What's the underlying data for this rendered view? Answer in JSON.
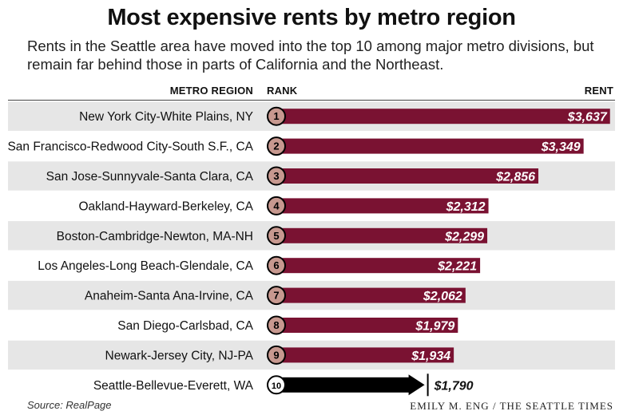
{
  "title": "Most expensive rents by metro region",
  "subtitle": "Rents in the Seattle area have moved into the top 10 among major metro divisions, but remain far behind those in parts of California and the Northeast.",
  "headers": {
    "metro": "METRO REGION",
    "rank": "RANK",
    "rent": "RENT"
  },
  "source": "Source: RealPage",
  "credit": "EMILY M. ENG / THE SEATTLE TIMES",
  "colors": {
    "bar": "#7a1232",
    "highlight_bar": "#000000",
    "rank_circle": "#c7988f",
    "row_stripe": "#e6e6e6"
  },
  "chart_data": {
    "type": "bar",
    "orientation": "horizontal",
    "categories": [
      "New York City-White Plains, NY",
      "San Francisco-Redwood City-South S.F., CA",
      "San Jose-Sunnyvale-Santa Clara, CA",
      "Oakland-Hayward-Berkeley, CA",
      "Boston-Cambridge-Newton, MA-NH",
      "Los Angeles-Long Beach-Glendale, CA",
      "Anaheim-Santa Ana-Irvine, CA",
      "San Diego-Carlsbad, CA",
      "Newark-Jersey City, NJ-PA",
      "Seattle-Bellevue-Everett, WA"
    ],
    "ranks": [
      "1",
      "2",
      "3",
      "4",
      "5",
      "6",
      "7",
      "8",
      "9",
      "10"
    ],
    "values": [
      3637,
      3349,
      2856,
      2312,
      2299,
      2221,
      2062,
      1979,
      1934,
      1790
    ],
    "value_labels": [
      "$3,637",
      "$3,349",
      "$2,856",
      "$2,312",
      "$2,299",
      "$2,221",
      "$2,062",
      "$1,979",
      "$1,934",
      "$1,790"
    ],
    "highlight": "Seattle-Bellevue-Everett, WA",
    "grid": false
  }
}
